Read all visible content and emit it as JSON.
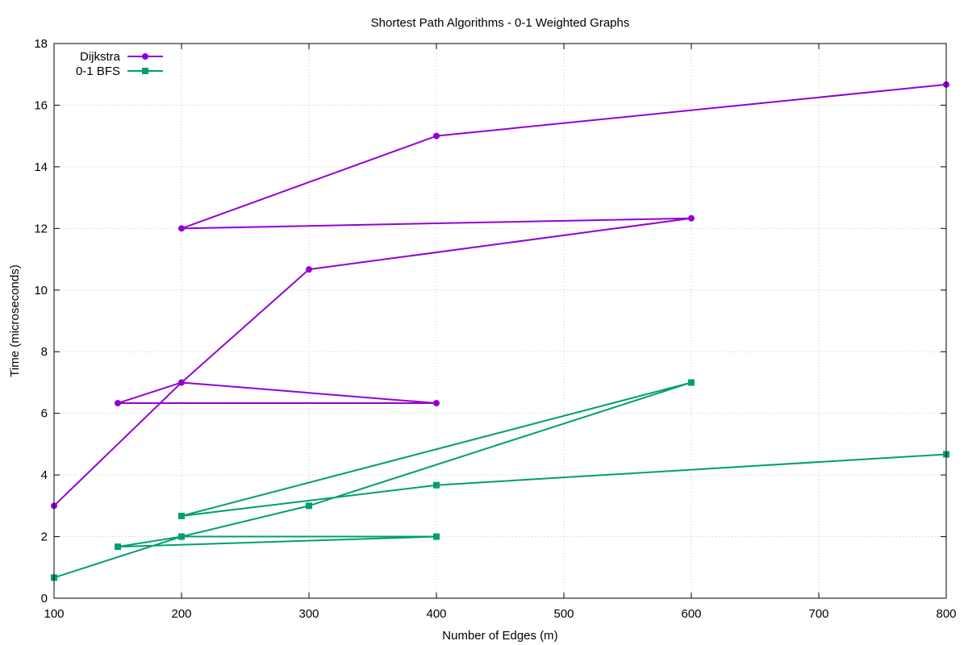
{
  "chart_data": {
    "type": "line",
    "title": "Shortest Path Algorithms - 0-1 Weighted Graphs",
    "xlabel": "Number of Edges (m)",
    "ylabel": "Time (microseconds)",
    "xlim": [
      100,
      800
    ],
    "ylim": [
      0,
      18
    ],
    "xticks": [
      "100",
      "200",
      "300",
      "400",
      "500",
      "600",
      "700",
      "800"
    ],
    "yticks": [
      "0",
      "2",
      "4",
      "6",
      "8",
      "10",
      "12",
      "14",
      "16",
      "18"
    ],
    "grid": true,
    "legend_position": "top-left",
    "series": [
      {
        "name": "Dijkstra",
        "color": "#9400d3",
        "marker": "circle",
        "x": [
          100,
          200,
          150,
          400,
          200,
          300,
          600,
          200,
          400,
          800
        ],
        "y": [
          3.0,
          7.0,
          6.33,
          6.33,
          7.0,
          10.67,
          12.33,
          12.0,
          15.0,
          16.67
        ]
      },
      {
        "name": "0-1 BFS",
        "color": "#009e73",
        "marker": "square",
        "x": [
          100,
          200,
          150,
          400,
          200,
          300,
          600,
          200,
          400,
          800
        ],
        "y": [
          0.67,
          2.0,
          1.67,
          2.0,
          2.0,
          3.0,
          7.0,
          2.67,
          3.67,
          4.67
        ]
      }
    ]
  }
}
